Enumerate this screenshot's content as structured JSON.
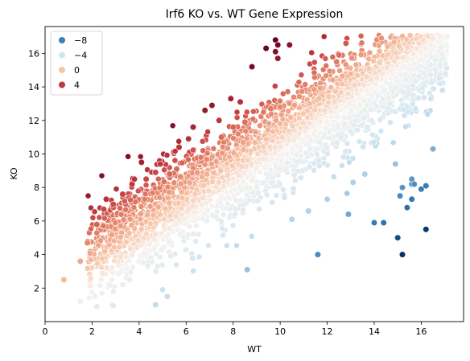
{
  "chart_data": {
    "type": "scatter",
    "title": "Irf6 KO vs. WT Gene Expression",
    "xlabel": "WT",
    "ylabel": "KO",
    "xlim": [
      0,
      17.8
    ],
    "ylim": [
      0,
      17.6
    ],
    "xticks": [
      0,
      2,
      4,
      6,
      8,
      10,
      12,
      14,
      16
    ],
    "yticks": [
      2,
      4,
      6,
      8,
      10,
      12,
      14,
      16
    ],
    "grid": false,
    "legend": {
      "placement": "top-left",
      "entries": [
        {
          "label": "−8",
          "color": "#3b7fb9"
        },
        {
          "label": "−4",
          "color": "#d1e5f0"
        },
        {
          "label": "0",
          "color": "#f7c3a6"
        },
        {
          "label": "4",
          "color": "#c0373c"
        }
      ]
    },
    "colormap": {
      "name": "RdBu_r",
      "value": "KO - WT",
      "range": [
        -11,
        7
      ],
      "stops": [
        {
          "v": -11,
          "c": "#053061"
        },
        {
          "v": -8,
          "c": "#3b7fb9"
        },
        {
          "v": -5,
          "c": "#a9cfe4"
        },
        {
          "v": -3,
          "c": "#d1e5f0"
        },
        {
          "v": 0,
          "c": "#f7f2ef"
        },
        {
          "v": 1.5,
          "c": "#f7c3a6"
        },
        {
          "v": 3,
          "c": "#e58267"
        },
        {
          "v": 4.5,
          "c": "#c0373c"
        },
        {
          "v": 7,
          "c": "#67001f"
        }
      ]
    },
    "points": [
      [
        0.8,
        2.5
      ],
      [
        1.5,
        1.2
      ],
      [
        2.2,
        0.9
      ],
      [
        2.9,
        0.95
      ],
      [
        4.7,
        1.0
      ],
      [
        5.2,
        1.5
      ],
      [
        5.0,
        1.9
      ],
      [
        1.5,
        3.6
      ],
      [
        1.8,
        4.7
      ],
      [
        2.2,
        5.8
      ],
      [
        2.5,
        6.7
      ],
      [
        2.6,
        7.3
      ],
      [
        2.9,
        7.0
      ],
      [
        3.3,
        7.6
      ],
      [
        3.7,
        8.2
      ],
      [
        3.8,
        8.5
      ],
      [
        4.3,
        8.5
      ],
      [
        4.7,
        8.9
      ],
      [
        4.9,
        9.4
      ],
      [
        5.3,
        8.8
      ],
      [
        5.6,
        9.1
      ],
      [
        4.1,
        9.5
      ],
      [
        5.7,
        10.4
      ],
      [
        6.1,
        10.9
      ],
      [
        6.3,
        11.6
      ],
      [
        6.8,
        12.6
      ],
      [
        7.1,
        12.9
      ],
      [
        7.4,
        12.0
      ],
      [
        7.5,
        11.0
      ],
      [
        8.0,
        11.6
      ],
      [
        7.9,
        13.3
      ],
      [
        8.3,
        13.1
      ],
      [
        8.5,
        11.9
      ],
      [
        9.6,
        12.7
      ],
      [
        10.0,
        12.8
      ],
      [
        12.4,
        15.5
      ],
      [
        12.8,
        16.6
      ],
      [
        12.5,
        15.9
      ],
      [
        8.8,
        15.2
      ],
      [
        9.4,
        16.3
      ],
      [
        9.8,
        16.8
      ],
      [
        9.9,
        16.5
      ],
      [
        9.8,
        16.1
      ],
      [
        9.9,
        15.7
      ],
      [
        10.4,
        16.5
      ],
      [
        8.6,
        3.1
      ],
      [
        11.6,
        4.0
      ],
      [
        12.9,
        6.4
      ],
      [
        12.0,
        7.3
      ],
      [
        11.2,
        6.6
      ],
      [
        10.5,
        6.1
      ],
      [
        14.0,
        5.9
      ],
      [
        14.4,
        5.9
      ],
      [
        13.6,
        8.8
      ],
      [
        14.9,
        9.4
      ],
      [
        16.5,
        10.3
      ],
      [
        13.1,
        8.3
      ],
      [
        15.1,
        7.5
      ],
      [
        15.2,
        8.0
      ],
      [
        15.6,
        8.2
      ],
      [
        15.6,
        8.5
      ],
      [
        15.7,
        8.2
      ],
      [
        15.6,
        7.3
      ],
      [
        16.0,
        7.9
      ],
      [
        16.2,
        8.1
      ],
      [
        15.4,
        6.8
      ],
      [
        15.0,
        5.0
      ],
      [
        15.2,
        4.0
      ],
      [
        16.2,
        5.5
      ],
      [
        16.9,
        13.8
      ],
      [
        17.1,
        17.0
      ],
      [
        16.8,
        16.7
      ],
      [
        16.4,
        16.5
      ],
      [
        15.9,
        16.6
      ]
    ]
  }
}
